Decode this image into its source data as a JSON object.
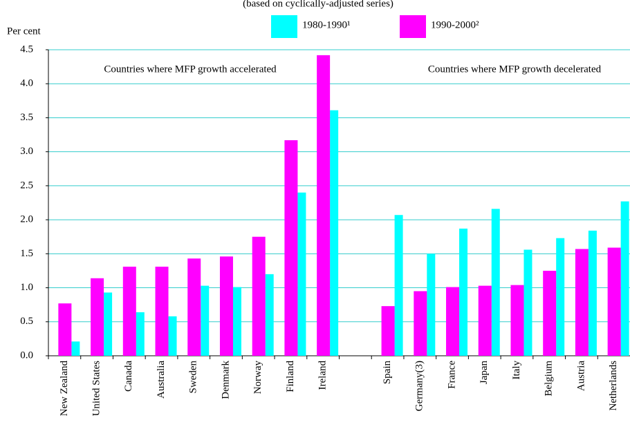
{
  "chart_data": {
    "type": "bar",
    "subtitle": "(based on cyclically-adjusted series)",
    "y_label": "Per cent",
    "annotations": [
      "Countries where MFP growth accelerated",
      "Countries where MFP growth decelerated"
    ],
    "categories": [
      "New Zealand",
      "United States",
      "Canada",
      "Australia",
      "Sweden",
      "Denmark",
      "Norway",
      "Finland",
      "Ireland",
      null,
      "Spain",
      "Germany(3)",
      "France",
      "Japan",
      "Italy",
      "Belgium",
      "Austria",
      "Netherlands"
    ],
    "series": [
      {
        "name": "1980-1990¹",
        "color": "#00ffff",
        "values": [
          0.21,
          0.93,
          0.64,
          0.58,
          1.03,
          1.01,
          1.2,
          2.4,
          3.61,
          null,
          2.07,
          1.5,
          1.87,
          2.16,
          1.56,
          1.73,
          1.84,
          2.27
        ]
      },
      {
        "name": "1990-2000²",
        "color": "#ff00ff",
        "values": [
          0.77,
          1.14,
          1.31,
          1.31,
          1.43,
          1.46,
          1.75,
          3.17,
          4.42,
          null,
          0.73,
          0.95,
          1.01,
          1.03,
          1.04,
          1.25,
          1.57,
          1.59
        ]
      }
    ],
    "ylim": [
      0,
      4.5
    ],
    "yticks": [
      {
        "value": 0,
        "label": "0.0"
      },
      0.5,
      {
        "value": 1,
        "label": "1.0"
      },
      1.5,
      {
        "value": 2,
        "label": "2.0"
      },
      2.5,
      {
        "value": 3,
        "label": "3.0"
      },
      3.5,
      {
        "value": 4,
        "label": "4.0"
      },
      4.5
    ],
    "grid": true,
    "grid_color": "#33cccc"
  }
}
